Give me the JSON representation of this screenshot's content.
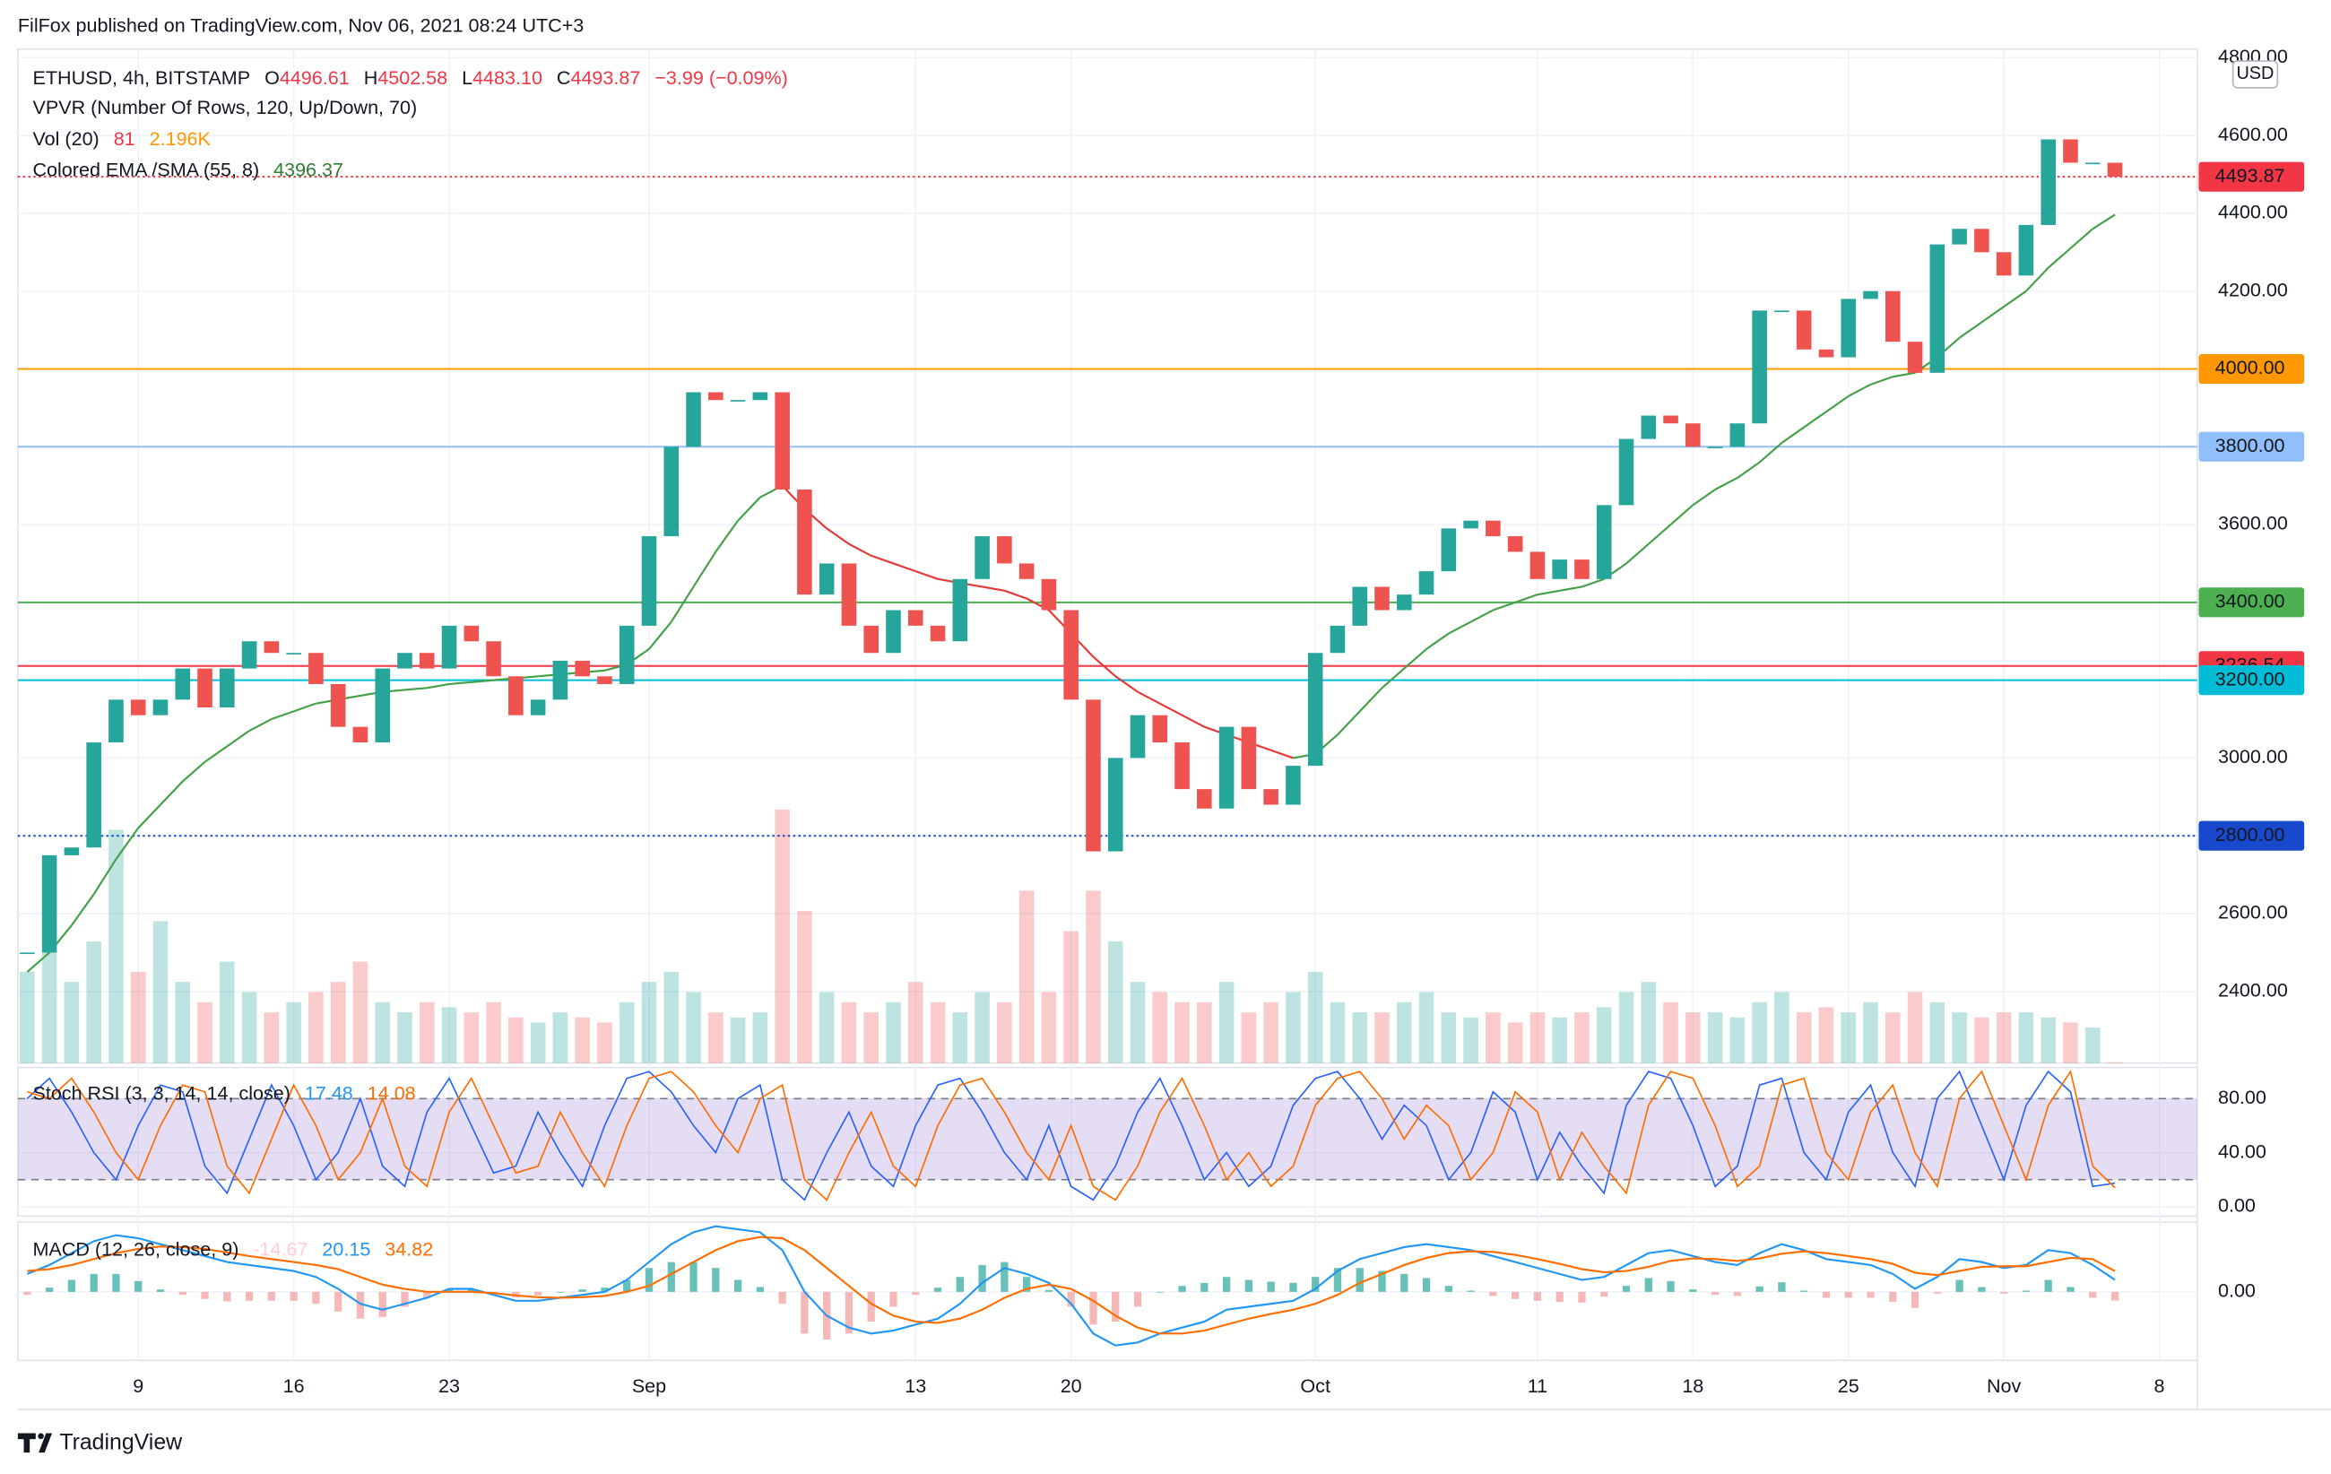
{
  "header": {
    "published": "FilFox published on TradingView.com, Nov 06, 2021 08:24 UTC+3"
  },
  "legend": {
    "symbol": "ETHUSD, 4h, BITSTAMP",
    "ohlc": [
      {
        "label": "O",
        "value": "4496.61"
      },
      {
        "label": "H",
        "value": "4502.58"
      },
      {
        "label": "L",
        "value": "4483.10"
      },
      {
        "label": "C",
        "value": "4493.87"
      }
    ],
    "change": "−3.99 (−0.09%)",
    "vpvr": "VPVR (Number Of Rows, 120, Up/Down, 70)",
    "vol": {
      "label": "Vol (20)",
      "values": [
        "81",
        "2.196K"
      ]
    },
    "ema": {
      "label": "Colored EMA /SMA (55, 8)",
      "value": "4396.37"
    }
  },
  "chart_data": [
    {
      "type": "candlestick",
      "currency": "USD",
      "categories": [
        null,
        null,
        null,
        null,
        null,
        "9",
        null,
        null,
        null,
        null,
        null,
        null,
        "16",
        null,
        null,
        null,
        null,
        null,
        null,
        "23",
        null,
        null,
        null,
        null,
        null,
        null,
        null,
        null,
        "Sep",
        null,
        null,
        null,
        null,
        null,
        null,
        null,
        null,
        null,
        null,
        null,
        "13",
        null,
        null,
        null,
        null,
        null,
        null,
        "20",
        null,
        null,
        null,
        null,
        null,
        null,
        null,
        null,
        null,
        null,
        "Oct",
        null,
        null,
        null,
        null,
        null,
        null,
        null,
        null,
        null,
        "11",
        null,
        null,
        null,
        null,
        null,
        null,
        "18",
        null,
        null,
        null,
        null,
        null,
        null,
        "25",
        null,
        null,
        null,
        null,
        null,
        null,
        "Nov",
        null,
        null,
        null,
        null,
        null,
        null,
        "8",
        null,
        null
      ],
      "close": [
        2500,
        2750,
        2770,
        3040,
        3150,
        3110,
        3150,
        3230,
        3130,
        3230,
        3300,
        3270,
        3270,
        3190,
        3080,
        3040,
        3230,
        3270,
        3230,
        3340,
        3300,
        3210,
        3110,
        3150,
        3250,
        3210,
        3190,
        3340,
        3570,
        3800,
        3940,
        3920,
        3920,
        3940,
        3690,
        3420,
        3500,
        3340,
        3270,
        3380,
        3340,
        3300,
        3460,
        3570,
        3500,
        3460,
        3380,
        3150,
        2760,
        3000,
        3110,
        3040,
        2920,
        2870,
        3080,
        2920,
        2880,
        2980,
        3270,
        3340,
        3440,
        3380,
        3420,
        3480,
        3590,
        3610,
        3570,
        3530,
        3460,
        3510,
        3460,
        3650,
        3820,
        3880,
        3860,
        3800,
        3800,
        3860,
        4150,
        4150,
        4050,
        4030,
        4180,
        4200,
        4070,
        3990,
        4320,
        4360,
        4300,
        4240,
        4370,
        4590,
        4530,
        4530,
        4493.87,
        null,
        null,
        null,
        null
      ],
      "ema": {
        "values": [
          2450,
          2500,
          2570,
          2650,
          2740,
          2820,
          2880,
          2940,
          2990,
          3030,
          3070,
          3100,
          3120,
          3140,
          3150,
          3160,
          3170,
          3175,
          3180,
          3190,
          3195,
          3200,
          3205,
          3210,
          3215,
          3220,
          3225,
          3240,
          3280,
          3350,
          3440,
          3530,
          3610,
          3670,
          3700,
          3640,
          3590,
          3550,
          3520,
          3500,
          3480,
          3460,
          3450,
          3440,
          3430,
          3410,
          3380,
          3320,
          3260,
          3210,
          3170,
          3140,
          3110,
          3080,
          3060,
          3040,
          3020,
          3000,
          3010,
          3060,
          3120,
          3180,
          3230,
          3280,
          3320,
          3350,
          3380,
          3400,
          3420,
          3430,
          3440,
          3460,
          3500,
          3550,
          3600,
          3650,
          3690,
          3720,
          3760,
          3810,
          3850,
          3890,
          3930,
          3960,
          3980,
          3990,
          4030,
          4080,
          4120,
          4160,
          4200,
          4260,
          4310,
          4360,
          4396.37,
          null,
          null,
          null,
          null
        ],
        "rising_color": "#43a047",
        "falling_color": "#e53935"
      },
      "volume": {
        "values": [
          9000,
          11000,
          8000,
          12000,
          23000,
          9000,
          14000,
          8000,
          6000,
          10000,
          7000,
          5000,
          6000,
          7000,
          8000,
          10000,
          6000,
          5000,
          6000,
          5500,
          5000,
          6000,
          4500,
          4000,
          5000,
          4500,
          4000,
          6000,
          8000,
          9000,
          7000,
          5000,
          4500,
          5000,
          25000,
          15000,
          7000,
          6000,
          5000,
          6000,
          8000,
          6000,
          5000,
          7000,
          6000,
          17000,
          7000,
          13000,
          17000,
          12000,
          8000,
          7000,
          6000,
          6000,
          8000,
          5000,
          6000,
          7000,
          9000,
          6000,
          5000,
          5000,
          6000,
          7000,
          5000,
          4500,
          5000,
          4000,
          5000,
          4500,
          5000,
          5500,
          7000,
          8000,
          6000,
          5000,
          5000,
          4500,
          6000,
          7000,
          5000,
          5500,
          5000,
          6000,
          5000,
          7000,
          6000,
          5000,
          4500,
          5000,
          5000,
          4500,
          4000,
          3500,
          81,
          null,
          null,
          null,
          null
        ],
        "ylim": [
          0,
          100000
        ]
      },
      "up_color": "#26a69a",
      "down_color": "#ef5350",
      "levels": [
        {
          "value": 4493.87,
          "color": "#f23645",
          "text_color": "#ffffff",
          "style": "dotted"
        },
        {
          "value": 4000,
          "label": "4000.00",
          "color": "#ff9800",
          "text_color": "#131722",
          "style": "solid"
        },
        {
          "value": 3800,
          "label": "3800.00",
          "color": "#90bff9",
          "text_color": "#131722",
          "style": "solid"
        },
        {
          "value": 3400,
          "label": "3400.00",
          "color": "#4caf50",
          "text_color": "#131722",
          "style": "solid"
        },
        {
          "value": 3236.54,
          "color": "#f23645",
          "text_color": "#ffffff",
          "style": "solid"
        },
        {
          "value": 3200,
          "label": "3200.00",
          "color": "#00bcd4",
          "text_color": "#131722",
          "style": "solid"
        },
        {
          "value": 2800,
          "label": "2800.00",
          "color": "#1848cc",
          "text_color": "#ffffff",
          "style": "dotted"
        }
      ],
      "ylim": [
        2216,
        4822
      ],
      "yticks": [
        {
          "value": 2400,
          "label": "2400.00"
        },
        {
          "value": 2600,
          "label": "2600.00"
        },
        {
          "value": 2800,
          "label": "2800.00"
        },
        {
          "value": 3000,
          "label": "3000.00"
        },
        {
          "value": 3200,
          "label": "3200.00"
        },
        {
          "value": 3400,
          "label": "3400.00"
        },
        {
          "value": 3600,
          "label": "3600.00"
        },
        {
          "value": 3800,
          "label": "3800.00"
        },
        {
          "value": 4000,
          "label": "4000.00"
        },
        {
          "value": 4200,
          "label": "4200.00"
        },
        {
          "value": 4400,
          "label": "4400.00"
        },
        {
          "value": 4600,
          "label": "4600.00"
        },
        {
          "value": 4800,
          "label": "4800.00"
        }
      ],
      "grid": true
    },
    {
      "type": "line",
      "title": "Stoch RSI (3, 3, 14, 14, close)",
      "series": [
        {
          "color": "#2962ff",
          "values": [
            80,
            95,
            70,
            40,
            20,
            60,
            90,
            85,
            30,
            10,
            50,
            90,
            60,
            20,
            40,
            80,
            30,
            15,
            70,
            95,
            60,
            25,
            30,
            70,
            40,
            15,
            60,
            95,
            100,
            85,
            60,
            40,
            80,
            90,
            20,
            5,
            40,
            70,
            30,
            15,
            60,
            90,
            95,
            70,
            40,
            20,
            60,
            15,
            5,
            30,
            70,
            95,
            60,
            20,
            40,
            15,
            30,
            75,
            95,
            100,
            80,
            50,
            75,
            60,
            20,
            40,
            85,
            70,
            20,
            55,
            30,
            10,
            75,
            100,
            95,
            60,
            15,
            30,
            90,
            95,
            40,
            20,
            70,
            90,
            40,
            15,
            80,
            100,
            60,
            20,
            75,
            100,
            85,
            15,
            17.48,
            null,
            null,
            null,
            null
          ]
        },
        {
          "color": "#ff6d00",
          "values": [
            85,
            80,
            95,
            70,
            40,
            20,
            60,
            90,
            85,
            30,
            10,
            50,
            90,
            60,
            20,
            40,
            80,
            30,
            15,
            70,
            95,
            60,
            25,
            30,
            70,
            40,
            15,
            60,
            95,
            100,
            85,
            60,
            40,
            80,
            90,
            20,
            5,
            40,
            70,
            30,
            15,
            60,
            90,
            95,
            70,
            40,
            20,
            60,
            15,
            5,
            30,
            70,
            95,
            60,
            20,
            40,
            15,
            30,
            75,
            95,
            100,
            80,
            50,
            75,
            60,
            20,
            40,
            85,
            70,
            20,
            55,
            30,
            10,
            75,
            100,
            95,
            60,
            15,
            30,
            90,
            95,
            40,
            20,
            70,
            90,
            40,
            15,
            80,
            100,
            60,
            20,
            75,
            100,
            30,
            14.08,
            null,
            null,
            null,
            null
          ]
        }
      ],
      "bands": [
        20,
        80
      ],
      "band_color": "#7e57c2",
      "ylim": [
        -7,
        103
      ],
      "yticks": [
        {
          "value": 0,
          "label": "0.00"
        },
        {
          "value": 40,
          "label": "40.00"
        },
        {
          "value": 80,
          "label": "80.00"
        }
      ],
      "grid": true
    },
    {
      "type": "macd",
      "title": "MACD (12, 26, close, 9)",
      "series": [
        {
          "color": "#2196f3",
          "values": [
            30,
            45,
            65,
            85,
            95,
            90,
            80,
            70,
            60,
            50,
            45,
            40,
            35,
            25,
            5,
            -20,
            -30,
            -20,
            -10,
            5,
            5,
            -5,
            -15,
            -15,
            -10,
            -5,
            0,
            20,
            50,
            80,
            100,
            110,
            105,
            100,
            70,
            0,
            -40,
            -60,
            -70,
            -65,
            -55,
            -45,
            -20,
            15,
            40,
            30,
            15,
            -20,
            -70,
            -90,
            -85,
            -70,
            -60,
            -50,
            -30,
            -25,
            -20,
            -15,
            5,
            35,
            55,
            65,
            75,
            80,
            75,
            70,
            60,
            50,
            40,
            30,
            20,
            25,
            45,
            65,
            70,
            60,
            50,
            45,
            65,
            80,
            70,
            55,
            50,
            45,
            30,
            5,
            25,
            55,
            50,
            40,
            45,
            70,
            65,
            45,
            20.15,
            null,
            null,
            null,
            null
          ]
        },
        {
          "color": "#ff6d00",
          "values": [
            35,
            38,
            45,
            55,
            65,
            72,
            76,
            75,
            72,
            66,
            60,
            55,
            50,
            45,
            38,
            25,
            12,
            5,
            0,
            0,
            0,
            -2,
            -6,
            -9,
            -10,
            -9,
            -7,
            0,
            10,
            30,
            50,
            70,
            85,
            92,
            90,
            70,
            40,
            10,
            -20,
            -40,
            -50,
            -52,
            -45,
            -30,
            -10,
            5,
            12,
            5,
            -15,
            -40,
            -60,
            -70,
            -70,
            -65,
            -55,
            -45,
            -37,
            -30,
            -20,
            -5,
            15,
            30,
            45,
            57,
            65,
            68,
            67,
            62,
            55,
            47,
            38,
            33,
            35,
            42,
            52,
            56,
            55,
            52,
            56,
            64,
            68,
            65,
            60,
            55,
            47,
            32,
            28,
            35,
            42,
            43,
            43,
            50,
            57,
            55,
            34.82,
            null,
            null,
            null,
            null
          ]
        },
        {
          "color": "#ef9a9a",
          "up_color": "#26a69a",
          "values": [
            -5,
            7,
            20,
            30,
            30,
            18,
            4,
            -5,
            -12,
            -16,
            -15,
            -15,
            -15,
            -20,
            -33,
            -45,
            -42,
            -25,
            -10,
            5,
            5,
            -3,
            -9,
            -6,
            0,
            4,
            7,
            20,
            40,
            50,
            50,
            40,
            20,
            8,
            -20,
            -70,
            -80,
            -70,
            -50,
            -25,
            -5,
            7,
            25,
            45,
            50,
            25,
            3,
            -25,
            -55,
            -50,
            -25,
            0,
            10,
            15,
            25,
            20,
            17,
            15,
            25,
            40,
            40,
            35,
            30,
            23,
            10,
            2,
            -7,
            -12,
            -15,
            -17,
            -18,
            -8,
            10,
            23,
            18,
            4,
            -5,
            -7,
            9,
            16,
            2,
            -10,
            -10,
            -10,
            -17,
            -27,
            -3,
            20,
            8,
            -3,
            2,
            20,
            8,
            -10,
            -14.67,
            null,
            null,
            null,
            null
          ]
        }
      ],
      "ylim": [
        -115,
        117
      ],
      "yticks": [
        {
          "value": 0,
          "label": "0.00"
        }
      ],
      "grid": true
    }
  ],
  "footer": {
    "brand": "TradingView"
  }
}
